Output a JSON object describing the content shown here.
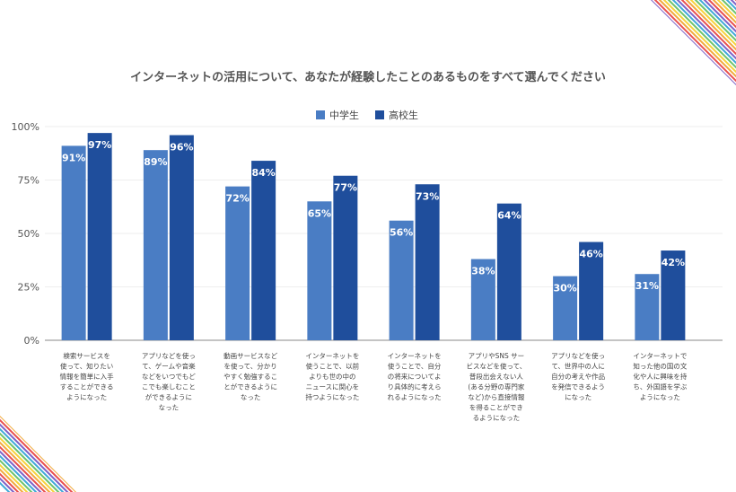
{
  "chart_data": {
    "type": "bar",
    "title": "インターネットの活用について、あなたが経験したことのあるものをすべて選んでください",
    "legend_position": "top",
    "grid": true,
    "ylim": [
      0,
      100
    ],
    "yticks": [
      "0%",
      "25%",
      "50%",
      "75%",
      "100%"
    ],
    "ytick_values": [
      0,
      25,
      50,
      75,
      100
    ],
    "categories": [
      [
        "検索サービスを",
        "使って、知りたい",
        "情報を簡単に入手",
        "することができる",
        "ようになった"
      ],
      [
        "アプリなどを使っ",
        "て、ゲームや音楽",
        "などをいつでもど",
        "こでも楽しむこと",
        "ができるように",
        "なった"
      ],
      [
        "動画サービスなど",
        "を使って、分かり",
        "やすく勉強するこ",
        "とができるように",
        "なった"
      ],
      [
        "インターネットを",
        "使うことで、以前",
        "よりも世の中の",
        "ニュースに関心を",
        "持つようになった"
      ],
      [
        "インターネットを",
        "使うことで、自分",
        "の将来についてよ",
        "り具体的に考えら",
        "れるようになった"
      ],
      [
        "アプリやSNS サー",
        "ビスなどを使って、",
        "普段出会えない人",
        "(ある分野の専門家",
        "など)から直接情報",
        "を得ることができ",
        "るようになった"
      ],
      [
        "アプリなどを使っ",
        "て、世界中の人に",
        "自分の考えや作品",
        "を発信できるよう",
        "になった"
      ],
      [
        "インターネットで",
        "知った他の国の文",
        "化や人に興味を持",
        "ち、外国語を学ぶ",
        "ようになった"
      ]
    ],
    "series": [
      {
        "name": "中学生",
        "color": "#4a7dc4",
        "values": [
          91,
          89,
          72,
          65,
          56,
          38,
          30,
          31
        ],
        "labels": [
          "91%",
          "89%",
          "72%",
          "65%",
          "56%",
          "38%",
          "30%",
          "31%"
        ]
      },
      {
        "name": "高校生",
        "color": "#1f4e9c",
        "values": [
          97,
          96,
          84,
          77,
          73,
          64,
          46,
          42
        ],
        "labels": [
          "97%",
          "96%",
          "84%",
          "77%",
          "73%",
          "64%",
          "46%",
          "42%"
        ]
      }
    ]
  },
  "decor": {
    "stripe_colors": [
      "#e94e4e",
      "#f2a93b",
      "#f5d33b",
      "#6cc26c",
      "#3fa8d8",
      "#7d5fc6"
    ]
  }
}
